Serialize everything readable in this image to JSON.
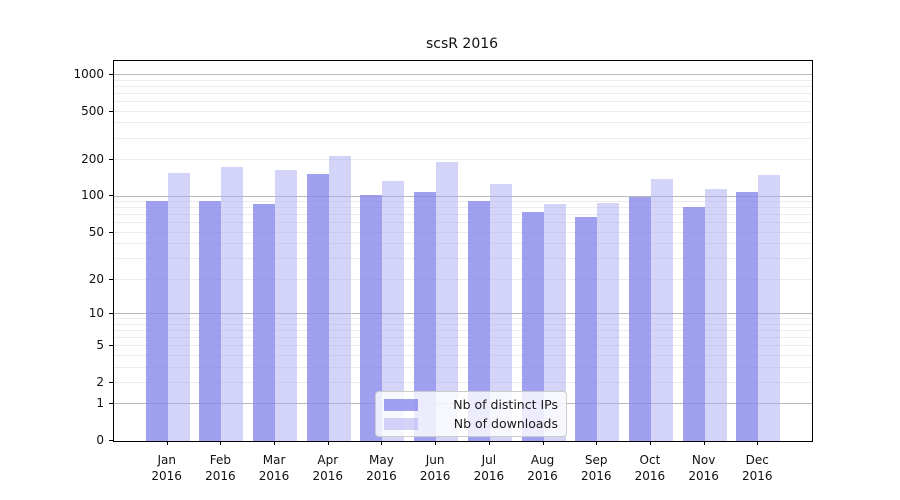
{
  "title": "scsR 2016",
  "legend": {
    "items": [
      {
        "label": "Nb of distinct IPs",
        "color": "#8888ee",
        "alpha": 0.8
      },
      {
        "label": "Nb of downloads",
        "color": "#aaaaf2",
        "alpha": 0.5
      }
    ]
  },
  "colors": {
    "major_grid": "#b8b8b8",
    "minor_grid": "#ececec",
    "axis": "#000000",
    "bar_ips": "#a1a1f0",
    "bar_downloads": "#d9d9f8"
  },
  "chart_data": {
    "type": "bar",
    "title": "scsR 2016",
    "categories": [
      "Jan 2016",
      "Feb 2016",
      "Mar 2016",
      "Apr 2016",
      "May 2016",
      "Jun 2016",
      "Jul 2016",
      "Aug 2016",
      "Sep 2016",
      "Oct 2016",
      "Nov 2016",
      "Dec 2016"
    ],
    "series": [
      {
        "name": "Nb of distinct IPs",
        "color": "#8888ee",
        "alpha": 0.8,
        "values": [
          92,
          91,
          86,
          153,
          102,
          108,
          92,
          74,
          68,
          100,
          82,
          110
        ]
      },
      {
        "name": "Nb of downloads",
        "color": "#aaaaf2",
        "alpha": 0.5,
        "values": [
          155,
          176,
          167,
          215,
          135,
          192,
          126,
          87,
          89,
          140,
          116,
          150
        ]
      }
    ],
    "xlabel": "",
    "ylabel": "",
    "yscale": "log10(value+1)",
    "yticks": [
      0,
      1,
      2,
      5,
      10,
      20,
      50,
      100,
      200,
      500,
      1000
    ],
    "ylim": [
      0,
      1300
    ],
    "grid": "on",
    "legend_position": "lower center"
  }
}
